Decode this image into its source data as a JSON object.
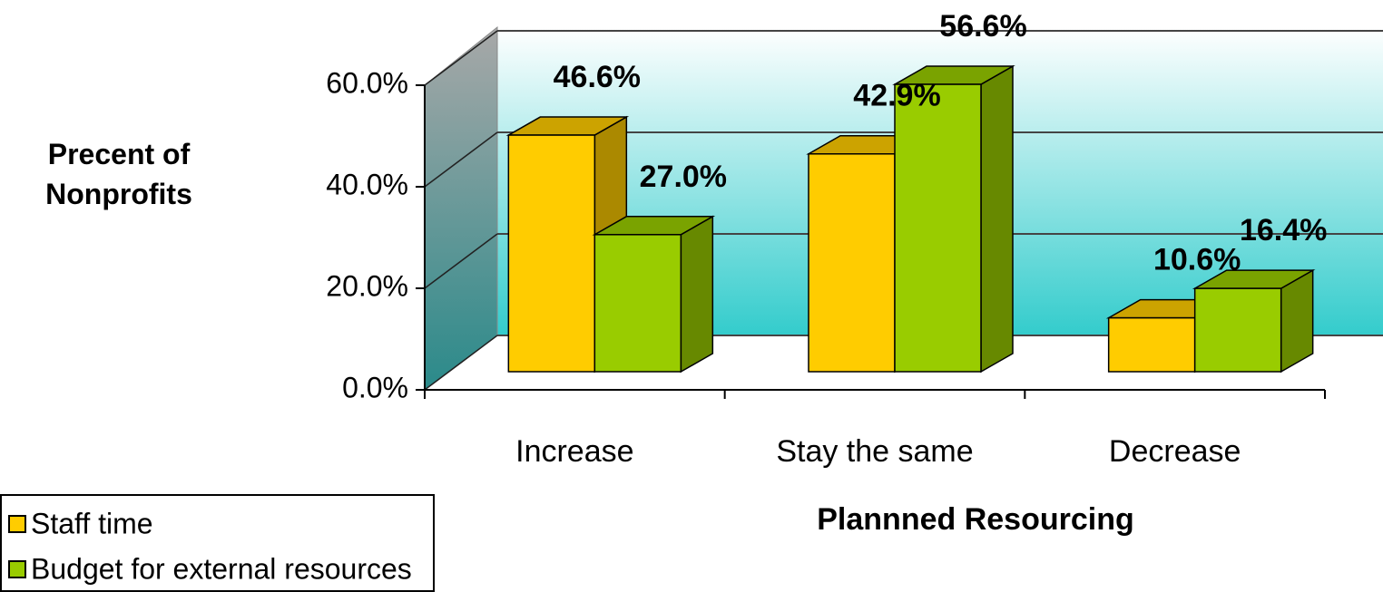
{
  "chart_data": {
    "type": "bar3d",
    "y_label": "Precent of Nonprofits",
    "x_label": "Plannned Resourcing",
    "categories": [
      "Increase",
      "Stay the same",
      "Decrease"
    ],
    "series": [
      {
        "name": "Staff time",
        "color": "#ffcc00",
        "values": [
          46.6,
          42.9,
          10.6
        ],
        "value_labels": [
          "46.6%",
          "42.9%",
          "10.6%"
        ]
      },
      {
        "name": "Budget for external resources",
        "color": "#99cc00",
        "values": [
          27.0,
          56.6,
          16.4
        ],
        "value_labels": [
          "27.0%",
          "56.6%",
          "16.4%"
        ]
      }
    ],
    "ylim": [
      0,
      60
    ],
    "yticks": [
      {
        "value": 0,
        "label": "0.0%"
      },
      {
        "value": 20,
        "label": "20.0%"
      },
      {
        "value": 40,
        "label": "40.0%"
      },
      {
        "value": 60,
        "label": "60.0%"
      }
    ],
    "grid": true
  }
}
